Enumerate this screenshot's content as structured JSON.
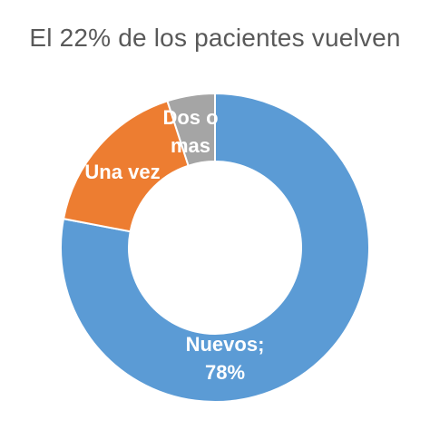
{
  "chart_data": {
    "type": "pie",
    "title": "El 22% de los pacientes vuelven",
    "categories": [
      "Nuevos",
      "Una vez",
      "Dos o mas"
    ],
    "values": [
      78,
      17,
      5
    ],
    "colors": [
      "#5b9bd5",
      "#ed7d31",
      "#a5a5a5"
    ],
    "labels": {
      "nuevos_line1": "Nuevos;",
      "nuevos_line2": "78%",
      "una_vez": "Una vez",
      "dos_line1": "Dos o",
      "dos_line2": "mas"
    }
  }
}
